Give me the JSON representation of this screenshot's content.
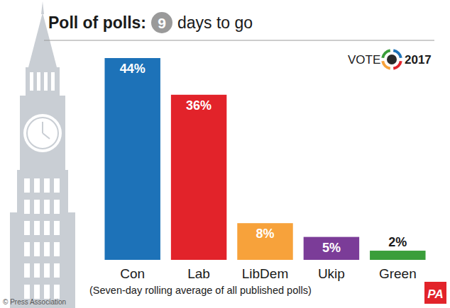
{
  "chart_data": {
    "type": "bar",
    "title": "Poll of polls:",
    "annotations": [
      "9",
      "days to go",
      "VOTE",
      "2017",
      "(Seven-day rolling average of all published polls)",
      "© Press Association",
      "PA"
    ],
    "categories": [
      "Con",
      "Lab",
      "LibDem",
      "Ukip",
      "Green"
    ],
    "values": [
      44,
      36,
      8,
      5,
      2
    ],
    "value_labels": [
      "44%",
      "36%",
      "8%",
      "5%",
      "2%"
    ],
    "colors": [
      "#1d72b8",
      "#e2232a",
      "#f7a23b",
      "#7b3c98",
      "#3a9e3a"
    ],
    "ylim": [
      0,
      44
    ],
    "data_labels": true,
    "tick_labels": "x",
    "grid": false
  }
}
